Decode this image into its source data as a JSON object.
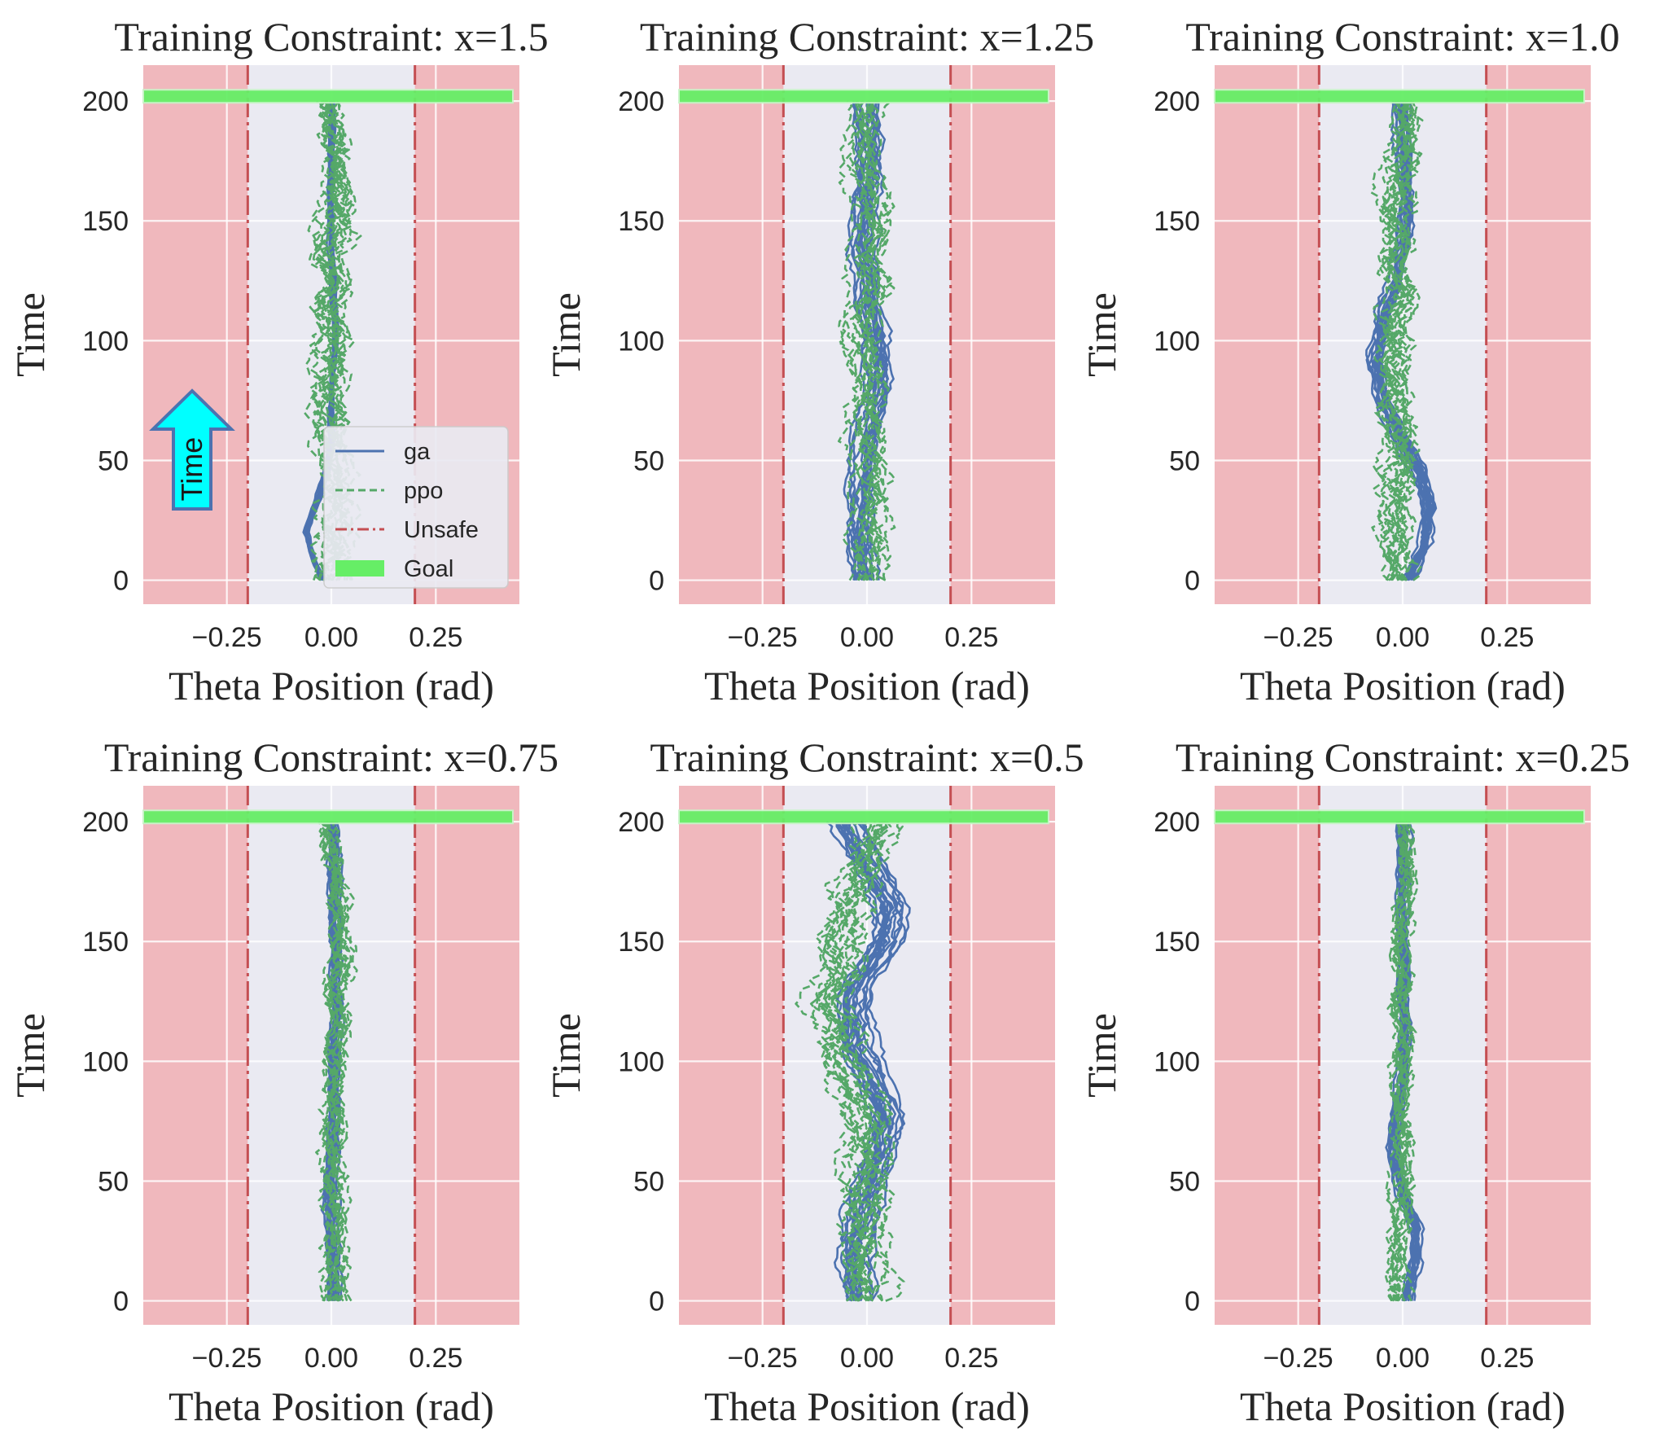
{
  "chart_data": [
    {
      "type": "line",
      "title": "Training Constraint: x=1.5",
      "xlabel": "Theta Position (rad)",
      "ylabel": "Time",
      "xlim": [
        -0.45,
        0.45
      ],
      "ylim": [
        -10,
        215
      ],
      "xticks": [
        "−0.25",
        "0.00",
        "0.25"
      ],
      "xtick_values": [
        -0.25,
        0.0,
        0.25
      ],
      "yticks": [
        "0",
        "50",
        "100",
        "150",
        "200"
      ],
      "ytick_values": [
        0,
        50,
        100,
        150,
        200
      ],
      "unsafe_bounds": [
        -0.2,
        0.2
      ],
      "goal_time": 202,
      "grid": true,
      "legend_placement": "lower-right",
      "series": [
        {
          "name": "ga",
          "style": "solid",
          "color": "#4c72b0",
          "center": [
            [
              0,
              -0.02
            ],
            [
              10,
              -0.045
            ],
            [
              20,
              -0.06
            ],
            [
              30,
              -0.04
            ],
            [
              45,
              -0.01
            ],
            [
              60,
              0.0
            ],
            [
              80,
              0.0
            ],
            [
              100,
              0.01
            ],
            [
              120,
              0.005
            ],
            [
              140,
              0.0
            ],
            [
              170,
              0.0
            ],
            [
              200,
              0.0
            ]
          ],
          "spread": 0.012,
          "count": 14
        },
        {
          "name": "ppo",
          "style": "dashed",
          "color": "#55a868",
          "center": [
            [
              0,
              0.0
            ],
            [
              20,
              0.005
            ],
            [
              40,
              0.01
            ],
            [
              60,
              0.0
            ],
            [
              80,
              0.0
            ],
            [
              100,
              0.0
            ],
            [
              120,
              0.0
            ],
            [
              140,
              0.0
            ],
            [
              160,
              0.0
            ],
            [
              180,
              0.0
            ],
            [
              200,
              0.0
            ]
          ],
          "spread": 0.05,
          "count": 16
        },
        {
          "name": "Unsafe",
          "style": "dashdot",
          "color": "#c44e52"
        },
        {
          "name": "Goal",
          "style": "band",
          "color": "#66ee66"
        }
      ],
      "annotation": "Time"
    },
    {
      "type": "line",
      "title": "Training Constraint: x=1.25",
      "xlabel": "Theta Position (rad)",
      "ylabel": "Time",
      "xlim": [
        -0.45,
        0.45
      ],
      "ylim": [
        -10,
        215
      ],
      "xticks": [
        "−0.25",
        "0.00",
        "0.25"
      ],
      "xtick_values": [
        -0.25,
        0.0,
        0.25
      ],
      "yticks": [
        "0",
        "50",
        "100",
        "150",
        "200"
      ],
      "ytick_values": [
        0,
        50,
        100,
        150,
        200
      ],
      "unsafe_bounds": [
        -0.2,
        0.2
      ],
      "goal_time": 202,
      "grid": true,
      "series": [
        {
          "name": "ga",
          "style": "solid",
          "color": "#4c72b0",
          "center": [
            [
              0,
              -0.01
            ],
            [
              20,
              -0.02
            ],
            [
              40,
              -0.015
            ],
            [
              60,
              0.0
            ],
            [
              80,
              0.03
            ],
            [
              100,
              0.02
            ],
            [
              120,
              0.0
            ],
            [
              140,
              -0.01
            ],
            [
              160,
              -0.01
            ],
            [
              180,
              0.0
            ],
            [
              200,
              0.0
            ]
          ],
          "spread": 0.035,
          "count": 16
        },
        {
          "name": "ppo",
          "style": "dashed",
          "color": "#55a868",
          "center": [
            [
              0,
              0.0
            ],
            [
              20,
              0.0
            ],
            [
              40,
              0.01
            ],
            [
              60,
              0.0
            ],
            [
              80,
              0.0
            ],
            [
              100,
              -0.02
            ],
            [
              120,
              0.0
            ],
            [
              140,
              0.0
            ],
            [
              160,
              0.0
            ],
            [
              180,
              0.0
            ],
            [
              200,
              0.0
            ]
          ],
          "spread": 0.04,
          "count": 14
        }
      ]
    },
    {
      "type": "line",
      "title": "Training Constraint: x=1.0",
      "xlabel": "Theta Position (rad)",
      "ylabel": "Time",
      "xlim": [
        -0.45,
        0.45
      ],
      "ylim": [
        -10,
        215
      ],
      "xticks": [
        "−0.25",
        "0.00",
        "0.25"
      ],
      "xtick_values": [
        -0.25,
        0.0,
        0.25
      ],
      "yticks": [
        "0",
        "50",
        "100",
        "150",
        "200"
      ],
      "ytick_values": [
        0,
        50,
        100,
        150,
        200
      ],
      "unsafe_bounds": [
        -0.2,
        0.2
      ],
      "goal_time": 202,
      "grid": true,
      "series": [
        {
          "name": "ga",
          "style": "solid",
          "color": "#4c72b0",
          "center": [
            [
              0,
              0.02
            ],
            [
              15,
              0.06
            ],
            [
              30,
              0.07
            ],
            [
              45,
              0.05
            ],
            [
              60,
              0.0
            ],
            [
              75,
              -0.04
            ],
            [
              90,
              -0.06
            ],
            [
              105,
              -0.045
            ],
            [
              120,
              -0.02
            ],
            [
              140,
              0.01
            ],
            [
              160,
              0.02
            ],
            [
              180,
              0.015
            ],
            [
              200,
              0.005
            ]
          ],
          "spread": 0.03,
          "count": 16
        },
        {
          "name": "ppo",
          "style": "dashed",
          "color": "#55a868",
          "center": [
            [
              0,
              0.0
            ],
            [
              30,
              -0.01
            ],
            [
              60,
              0.0
            ],
            [
              90,
              -0.01
            ],
            [
              120,
              0.0
            ],
            [
              150,
              0.0
            ],
            [
              180,
              0.0
            ],
            [
              200,
              0.0
            ]
          ],
          "spread": 0.045,
          "count": 16
        }
      ]
    },
    {
      "type": "line",
      "title": "Training Constraint: x=0.75",
      "xlabel": "Theta Position (rad)",
      "ylabel": "Time",
      "xlim": [
        -0.45,
        0.45
      ],
      "ylim": [
        -10,
        215
      ],
      "xticks": [
        "−0.25",
        "0.00",
        "0.25"
      ],
      "xtick_values": [
        -0.25,
        0.0,
        0.25
      ],
      "yticks": [
        "0",
        "50",
        "100",
        "150",
        "200"
      ],
      "ytick_values": [
        0,
        50,
        100,
        150,
        200
      ],
      "unsafe_bounds": [
        -0.2,
        0.2
      ],
      "goal_time": 202,
      "grid": true,
      "series": [
        {
          "name": "ga",
          "style": "solid",
          "color": "#4c72b0",
          "center": [
            [
              0,
              0.0
            ],
            [
              25,
              -0.005
            ],
            [
              50,
              -0.01
            ],
            [
              75,
              0.0
            ],
            [
              100,
              0.0
            ],
            [
              125,
              0.005
            ],
            [
              150,
              0.005
            ],
            [
              175,
              0.0
            ],
            [
              200,
              -0.01
            ]
          ],
          "spread": 0.025,
          "count": 16
        },
        {
          "name": "ppo",
          "style": "dashed",
          "color": "#55a868",
          "center": [
            [
              0,
              0.0
            ],
            [
              30,
              0.0
            ],
            [
              60,
              0.0
            ],
            [
              90,
              0.0
            ],
            [
              120,
              0.01
            ],
            [
              150,
              0.01
            ],
            [
              180,
              0.0
            ],
            [
              200,
              -0.005
            ]
          ],
          "spread": 0.035,
          "count": 14
        }
      ]
    },
    {
      "type": "line",
      "title": "Training Constraint: x=0.5",
      "xlabel": "Theta Position (rad)",
      "ylabel": "Time",
      "xlim": [
        -0.45,
        0.45
      ],
      "ylim": [
        -10,
        215
      ],
      "xticks": [
        "−0.25",
        "0.00",
        "0.25"
      ],
      "xtick_values": [
        -0.25,
        0.0,
        0.25
      ],
      "yticks": [
        "0",
        "50",
        "100",
        "150",
        "200"
      ],
      "ytick_values": [
        0,
        50,
        100,
        150,
        200
      ],
      "unsafe_bounds": [
        -0.2,
        0.2
      ],
      "goal_time": 202,
      "grid": true,
      "series": [
        {
          "name": "ga",
          "style": "solid",
          "color": "#4c72b0",
          "center": [
            [
              0,
              -0.02
            ],
            [
              20,
              -0.03
            ],
            [
              40,
              -0.01
            ],
            [
              60,
              0.03
            ],
            [
              75,
              0.05
            ],
            [
              90,
              0.02
            ],
            [
              105,
              -0.02
            ],
            [
              120,
              -0.04
            ],
            [
              135,
              -0.01
            ],
            [
              150,
              0.04
            ],
            [
              165,
              0.05
            ],
            [
              180,
              0.01
            ],
            [
              200,
              -0.04
            ]
          ],
          "spread": 0.045,
          "count": 18
        },
        {
          "name": "ppo",
          "style": "dashed",
          "color": "#55a868",
          "center": [
            [
              0,
              0.0
            ],
            [
              25,
              0.0
            ],
            [
              50,
              0.0
            ],
            [
              75,
              0.0
            ],
            [
              100,
              -0.05
            ],
            [
              125,
              -0.09
            ],
            [
              150,
              -0.05
            ],
            [
              175,
              0.0
            ],
            [
              200,
              0.03
            ]
          ],
          "spread": 0.05,
          "count": 16
        }
      ]
    },
    {
      "type": "line",
      "title": "Training Constraint: x=0.25",
      "xlabel": "Theta Position (rad)",
      "ylabel": "Time",
      "xlim": [
        -0.45,
        0.45
      ],
      "ylim": [
        -10,
        215
      ],
      "xticks": [
        "−0.25",
        "0.00",
        "0.25"
      ],
      "xtick_values": [
        -0.25,
        0.0,
        0.25
      ],
      "yticks": [
        "0",
        "50",
        "100",
        "150",
        "200"
      ],
      "ytick_values": [
        0,
        50,
        100,
        150,
        200
      ],
      "unsafe_bounds": [
        -0.2,
        0.2
      ],
      "goal_time": 202,
      "grid": true,
      "series": [
        {
          "name": "ga",
          "style": "solid",
          "color": "#4c72b0",
          "center": [
            [
              0,
              0.01
            ],
            [
              15,
              0.03
            ],
            [
              30,
              0.035
            ],
            [
              45,
              0.0
            ],
            [
              60,
              -0.02
            ],
            [
              75,
              -0.02
            ],
            [
              90,
              0.0
            ],
            [
              110,
              0.005
            ],
            [
              130,
              0.0
            ],
            [
              160,
              0.005
            ],
            [
              200,
              0.0
            ]
          ],
          "spread": 0.025,
          "count": 16
        },
        {
          "name": "ppo",
          "style": "dashed",
          "color": "#55a868",
          "center": [
            [
              0,
              -0.01
            ],
            [
              25,
              -0.01
            ],
            [
              50,
              0.0
            ],
            [
              75,
              0.0
            ],
            [
              100,
              0.0
            ],
            [
              125,
              0.0
            ],
            [
              150,
              0.0
            ],
            [
              175,
              0.0
            ],
            [
              200,
              0.0
            ]
          ],
          "spread": 0.03,
          "count": 14
        }
      ]
    }
  ],
  "legend": {
    "entries": [
      {
        "label": "ga",
        "style": "solid",
        "color": "#4c72b0"
      },
      {
        "label": "ppo",
        "style": "dashed",
        "color": "#55a868"
      },
      {
        "label": "Unsafe",
        "style": "dashdot",
        "color": "#c44e52"
      },
      {
        "label": "Goal",
        "style": "band",
        "color": "#66ee66"
      }
    ]
  },
  "colors": {
    "background": "#eaeaf2",
    "unsafe_fill": "#f0b8bd",
    "grid": "#ffffff",
    "arrow_fill": "#00ffff",
    "arrow_stroke": "#4c72b0"
  }
}
